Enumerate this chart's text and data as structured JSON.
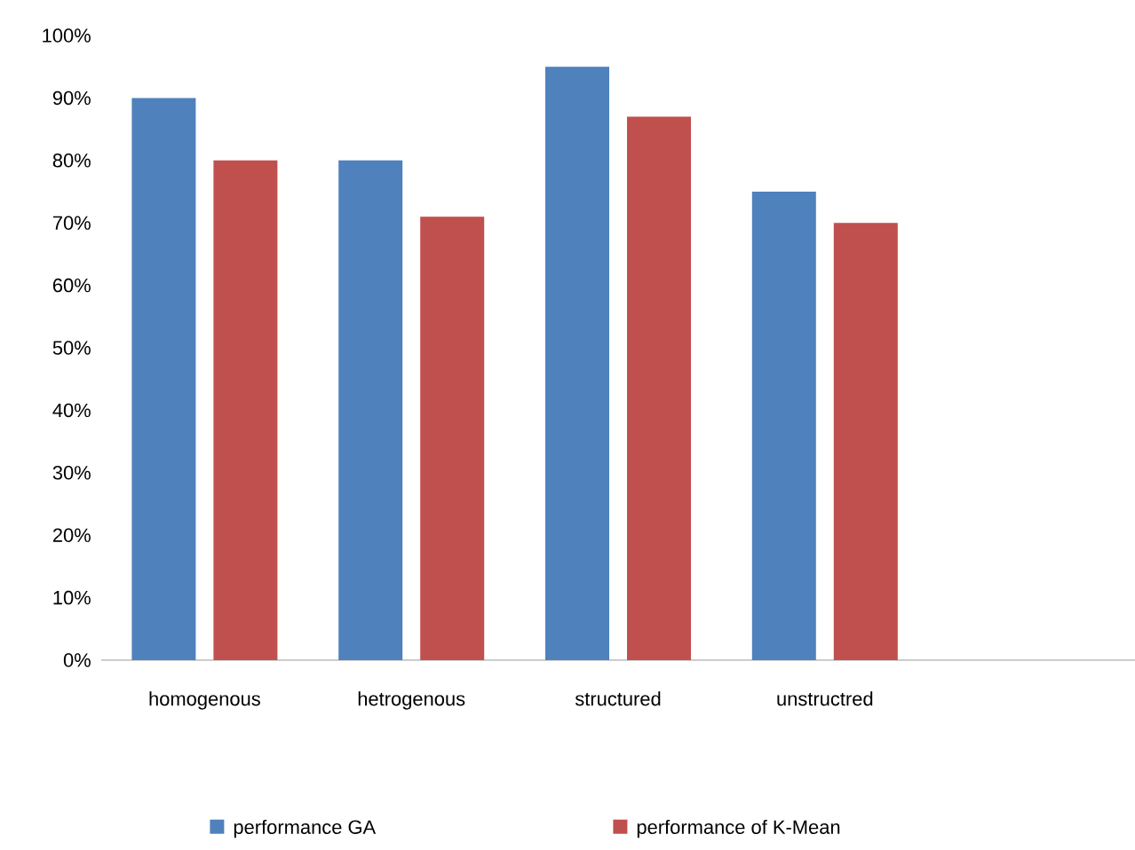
{
  "chart_data": {
    "type": "bar",
    "categories": [
      "homogenous",
      "hetrogenous",
      "structured",
      "unstructred",
      null
    ],
    "series": [
      {
        "name": "performance GA",
        "color": "#4f81bd",
        "values": [
          90,
          80,
          95,
          75,
          null
        ]
      },
      {
        "name": "performance of K-Mean",
        "color": "#c0504d",
        "values": [
          80,
          71,
          87,
          70,
          null
        ]
      }
    ],
    "ylim": [
      0,
      100
    ],
    "yticks": [
      {
        "value": 0,
        "label": "0%"
      },
      {
        "value": 10,
        "label": "10%"
      },
      {
        "value": 20,
        "label": "20%"
      },
      {
        "value": 30,
        "label": "30%"
      },
      {
        "value": 40,
        "label": "40%"
      },
      {
        "value": 50,
        "label": "50%"
      },
      {
        "value": 60,
        "label": "60%"
      },
      {
        "value": 70,
        "label": "70%"
      },
      {
        "value": 80,
        "label": "80%"
      },
      {
        "value": 90,
        "label": "90%"
      },
      {
        "value": 100,
        "label": "100%"
      }
    ],
    "legend": "bottom"
  }
}
